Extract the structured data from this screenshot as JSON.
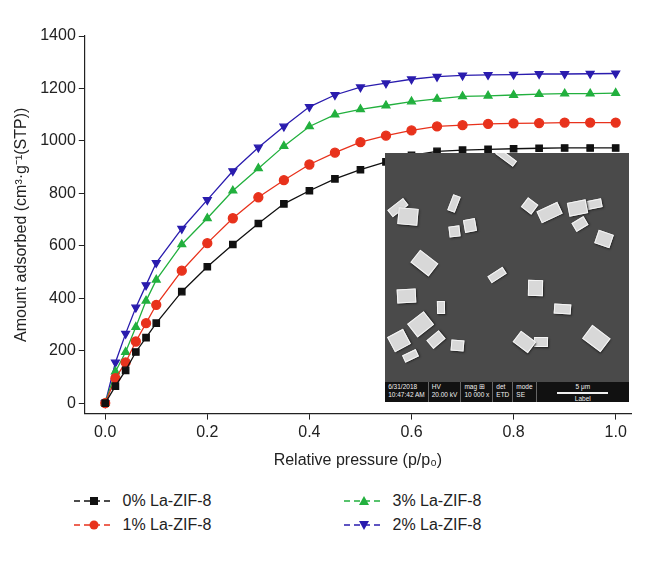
{
  "chart_data": {
    "type": "line",
    "x_label": "Relative pressure (p/p₀)",
    "y_label": "Amount adsorbed (cm³·g⁻¹(STP))",
    "x": [
      0,
      0.02,
      0.04,
      0.06,
      0.08,
      0.1,
      0.15,
      0.2,
      0.25,
      0.3,
      0.35,
      0.4,
      0.45,
      0.5,
      0.55,
      0.6,
      0.65,
      0.7,
      0.75,
      0.8,
      0.85,
      0.9,
      0.95,
      1.0
    ],
    "series": [
      {
        "name": "0% La-ZIF-8",
        "color": "#111111",
        "marker": "square",
        "line_style": "solid",
        "values": [
          0,
          65,
          125,
          195,
          250,
          305,
          425,
          520,
          605,
          685,
          760,
          810,
          855,
          890,
          920,
          945,
          960,
          965,
          968,
          970,
          972,
          973,
          973,
          973
        ]
      },
      {
        "name": "1% La-ZIF-8",
        "color": "#e8321c",
        "marker": "circle",
        "line_style": "solid",
        "values": [
          0,
          95,
          155,
          235,
          305,
          375,
          505,
          610,
          705,
          785,
          850,
          910,
          955,
          995,
          1020,
          1040,
          1055,
          1060,
          1065,
          1067,
          1068,
          1070,
          1070,
          1070
        ]
      },
      {
        "name": "3% La-ZIF-8",
        "color": "#22b03e",
        "marker": "triangle",
        "line_style": "solid",
        "values": [
          0,
          120,
          195,
          290,
          390,
          470,
          605,
          705,
          810,
          895,
          980,
          1055,
          1100,
          1120,
          1135,
          1150,
          1160,
          1170,
          1172,
          1175,
          1178,
          1180,
          1180,
          1182
        ]
      },
      {
        "name": "2% La-ZIF-8",
        "color": "#2a1cae",
        "marker": "triangle-down",
        "line_style": "solid",
        "values": [
          0,
          155,
          265,
          365,
          450,
          535,
          665,
          775,
          885,
          975,
          1055,
          1130,
          1175,
          1205,
          1220,
          1235,
          1245,
          1250,
          1252,
          1253,
          1255,
          1255,
          1256,
          1257
        ]
      }
    ],
    "xlim": [
      -0.04,
      1.03
    ],
    "ylim": [
      -40,
      1400
    ],
    "xticks": [
      {
        "value": 0,
        "label": "0.0"
      },
      {
        "value": 0.2,
        "label": "0.2"
      },
      {
        "value": 0.4,
        "label": "0.4"
      },
      {
        "value": 0.6,
        "label": "0.6"
      },
      {
        "value": 0.8,
        "label": "0.8"
      },
      {
        "value": 1,
        "label": "1.0"
      }
    ],
    "yticks": [
      0,
      200,
      400,
      600,
      800,
      1000,
      1200,
      1400
    ],
    "grid": false,
    "legend": "bottom",
    "inset": {
      "info_bar": [
        [
          "6/31/2018",
          "10:47:42 AM"
        ],
        [
          "HV",
          "20.00 kV"
        ],
        [
          "mag ⊞",
          "10 000 x"
        ],
        [
          "det",
          "ETD"
        ],
        [
          "mode",
          "SE"
        ]
      ],
      "scale_bar": "5 μm",
      "label": "Label"
    }
  }
}
